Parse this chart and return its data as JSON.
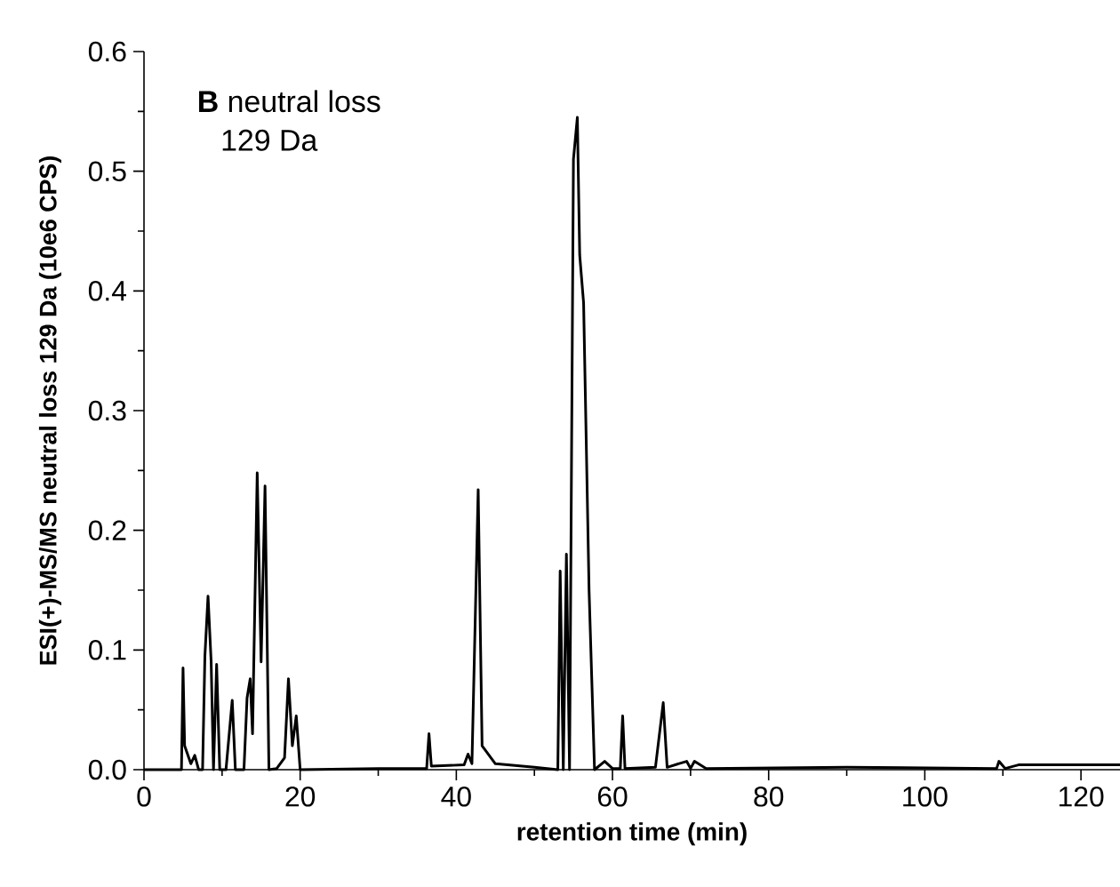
{
  "chart_data": {
    "type": "line",
    "xlabel": "retention time (min)",
    "ylabel": "ESI(+)-MS/MS neutral loss 129 Da (10e6 CPS)",
    "annotations": [
      "**B** neutral loss",
      "129 Da"
    ],
    "xlim": [
      0,
      125
    ],
    "ylim": [
      0,
      0.6
    ],
    "xticks": [
      0,
      20,
      40,
      60,
      80,
      100,
      120
    ],
    "yticks": [
      {
        "value": 0,
        "label": "0.0"
      },
      {
        "value": 0.1,
        "label": "0.1"
      },
      {
        "value": 0.2,
        "label": "0.2"
      },
      {
        "value": 0.3,
        "label": "0.3"
      },
      {
        "value": 0.4,
        "label": "0.4"
      },
      {
        "value": 0.5,
        "label": "0.5"
      },
      {
        "value": 0.6,
        "label": "0.6"
      }
    ],
    "grid": false,
    "marker": "none",
    "line_style": "solid",
    "series": [
      {
        "color": "#000000",
        "x": [
          0,
          4.8,
          5,
          5.2,
          6,
          6.5,
          7,
          7.5,
          7.8,
          8.2,
          8.6,
          8.9,
          9.3,
          9.7,
          10.5,
          11.3,
          11.7,
          12.8,
          13.2,
          13.6,
          13.9,
          14.5,
          15,
          15.5,
          16,
          17,
          18,
          18.5,
          19,
          19.5,
          20,
          30,
          36.2,
          36.5,
          36.8,
          41,
          41.5,
          42,
          42.8,
          43.3,
          45,
          50,
          53,
          53.3,
          53.7,
          54.1,
          54.5,
          55,
          55.5,
          55.8,
          56.3,
          57,
          57.7,
          59,
          60,
          61,
          61.3,
          61.6,
          65.5,
          66.5,
          67,
          69.5,
          70,
          70.5,
          72,
          90,
          109.2,
          109.5,
          110.3,
          112,
          124,
          125
        ],
        "values": [
          0,
          0,
          0.085,
          0.02,
          0.005,
          0.012,
          0,
          0,
          0.095,
          0.145,
          0.09,
          0,
          0.088,
          0,
          0,
          0.058,
          0,
          0,
          0.06,
          0.076,
          0.03,
          0.248,
          0.09,
          0.237,
          0,
          0.001,
          0.01,
          0.076,
          0.02,
          0.045,
          0,
          0.001,
          0.001,
          0.03,
          0.003,
          0.004,
          0.013,
          0.005,
          0.234,
          0.02,
          0.005,
          0.002,
          0,
          0.166,
          0,
          0.18,
          0,
          0.51,
          0.545,
          0.43,
          0.39,
          0.15,
          0,
          0.007,
          0.001,
          0.001,
          0.045,
          0.001,
          0.002,
          0.056,
          0.002,
          0.007,
          0.001,
          0.007,
          0.001,
          0.002,
          0.001,
          0.007,
          0.001,
          0.004,
          0.004,
          0.004
        ]
      }
    ]
  }
}
